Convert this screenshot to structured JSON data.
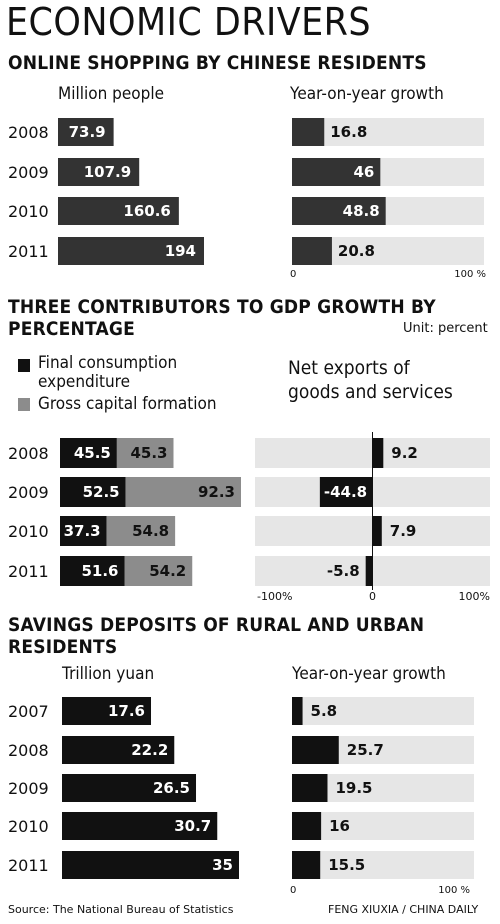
{
  "title": "ECONOMIC DRIVERS",
  "source": "Source: The National Bureau of Statistics",
  "credit": "FENG XIUXIA / CHINA DAILY",
  "colors": {
    "black": "#111111",
    "dark": "#333333",
    "gray": "#8c8c8c",
    "light": "#e6e6e6"
  },
  "chart_data": [
    {
      "type": "bar",
      "title": "ONLINE SHOPPING BY CHINESE RESIDENTS",
      "panels": [
        {
          "label": "Million people",
          "categories": [
            "2008",
            "2009",
            "2010",
            "2011"
          ],
          "values": [
            73.9,
            107.9,
            160.6,
            194
          ],
          "value_labels": [
            "73.9",
            "107.9",
            "160.6",
            "194"
          ]
        },
        {
          "label": "Year-on-year growth",
          "categories": [
            "2008",
            "2009",
            "2010",
            "2011"
          ],
          "values": [
            16.8,
            46,
            48.8,
            20.8
          ],
          "value_labels": [
            "16.8",
            "46",
            "48.8",
            "20.8"
          ],
          "xlim": [
            0,
            100
          ],
          "tick_labels": [
            "0",
            "100 %"
          ]
        }
      ]
    },
    {
      "type": "bar",
      "title": "THREE CONTRIBUTORS TO GDP GROWTH BY PERCENTAGE",
      "unit": "Unit: percent",
      "legend": [
        "Final consumption expenditure",
        "Gross capital formation"
      ],
      "categories": [
        "2008",
        "2009",
        "2010",
        "2011"
      ],
      "series": [
        {
          "name": "Final consumption expenditure",
          "values": [
            45.5,
            52.5,
            37.3,
            51.6
          ],
          "value_labels": [
            "45.5",
            "52.5",
            "37.3",
            "51.6"
          ]
        },
        {
          "name": "Gross capital formation",
          "values": [
            45.3,
            92.3,
            54.8,
            54.2
          ],
          "value_labels": [
            "45.3",
            "92.3",
            "54.8",
            "54.2"
          ]
        }
      ],
      "net_exports": {
        "label": "Net exports of goods and services",
        "values": [
          9.2,
          -44.8,
          7.9,
          -5.8
        ],
        "value_labels": [
          "9.2",
          "-44.8",
          "7.9",
          "-5.8"
        ],
        "xlim": [
          -100,
          100
        ],
        "tick_labels": [
          "-100%",
          "0",
          "100%"
        ]
      }
    },
    {
      "type": "bar",
      "title": "SAVINGS DEPOSITS OF RURAL AND URBAN RESIDENTS",
      "panels": [
        {
          "label": "Trillion yuan",
          "categories": [
            "2007",
            "2008",
            "2009",
            "2010",
            "2011"
          ],
          "values": [
            17.6,
            22.2,
            26.5,
            30.7,
            35
          ],
          "value_labels": [
            "17.6",
            "22.2",
            "26.5",
            "30.7",
            "35"
          ]
        },
        {
          "label": "Year-on-year growth",
          "categories": [
            "2007",
            "2008",
            "2009",
            "2010",
            "2011"
          ],
          "values": [
            5.8,
            25.7,
            19.5,
            16,
            15.5
          ],
          "value_labels": [
            "5.8",
            "25.7",
            "19.5",
            "16",
            "15.5"
          ],
          "xlim": [
            0,
            100
          ],
          "tick_labels": [
            "0",
            "100 %"
          ]
        }
      ]
    }
  ]
}
